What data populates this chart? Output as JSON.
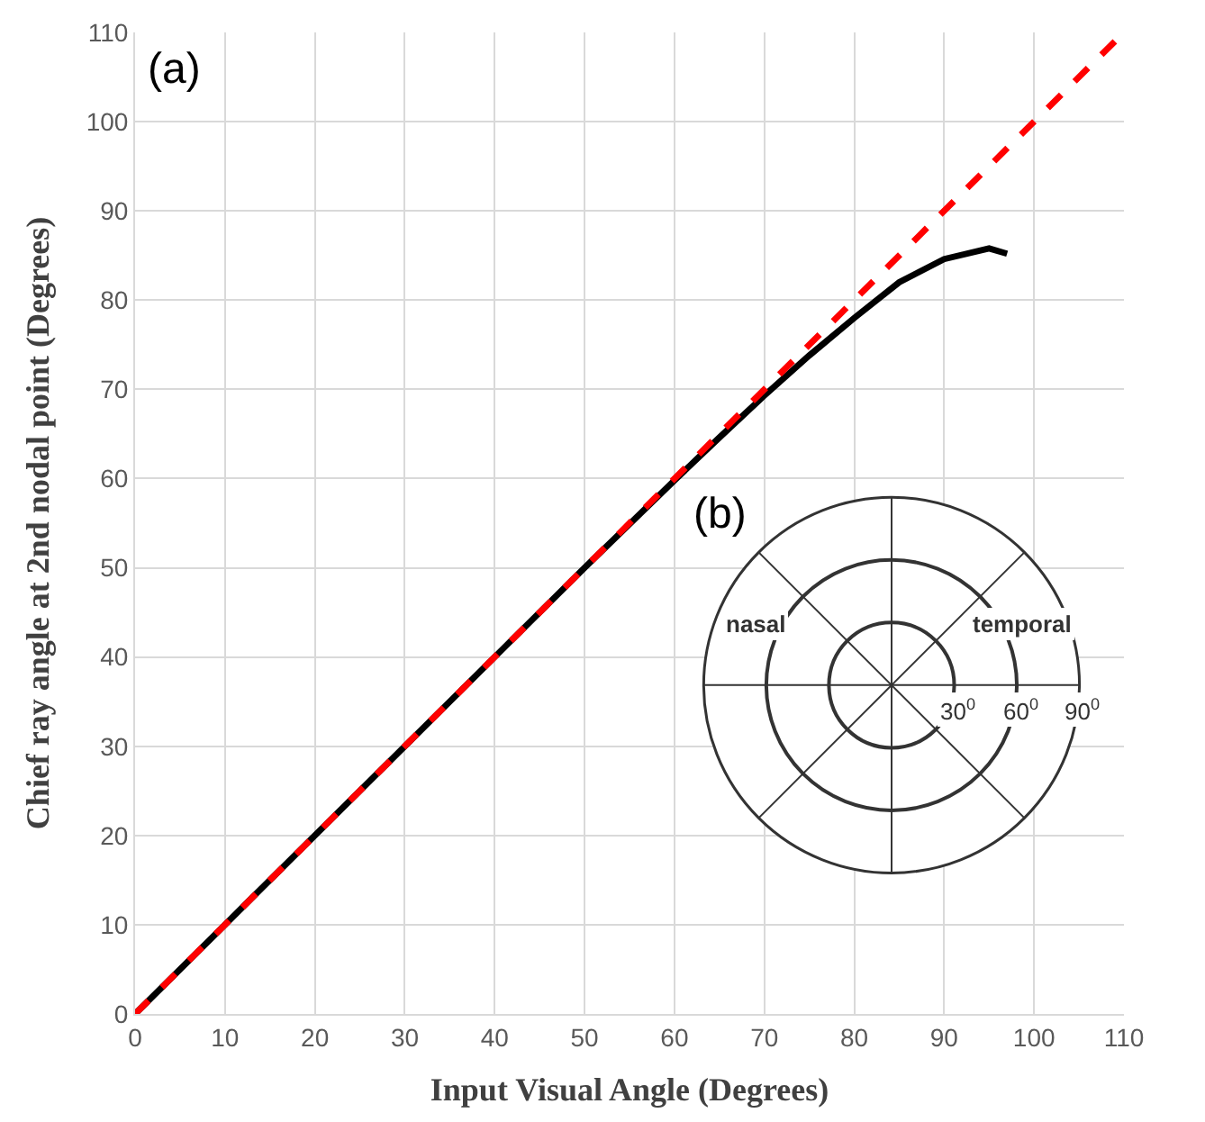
{
  "chart_data": [
    {
      "type": "line",
      "title": "(a)",
      "xlabel": "Input Visual Angle (Degrees)",
      "ylabel": "Chief ray angle at 2nd nodal point (Degrees)",
      "xlim": [
        0,
        110
      ],
      "ylim": [
        0,
        110
      ],
      "xticks": [
        0,
        10,
        20,
        30,
        40,
        50,
        60,
        70,
        80,
        90,
        100,
        110
      ],
      "yticks": [
        0,
        10,
        20,
        30,
        40,
        50,
        60,
        70,
        80,
        90,
        100,
        110
      ],
      "grid": true,
      "series": [
        {
          "color": "#000000",
          "line_style": "solid",
          "x": [
            0,
            10,
            20,
            30,
            40,
            50,
            60,
            65,
            70,
            75,
            80,
            85,
            90,
            95,
            97
          ],
          "values": [
            0,
            10,
            20,
            30,
            40,
            50,
            59.8,
            64.6,
            69.3,
            73.8,
            78,
            82,
            84.6,
            85.8,
            85.2
          ]
        },
        {
          "color": "#ff0000",
          "line_style": "dashed",
          "x": [
            0,
            110
          ],
          "values": [
            0,
            110
          ]
        }
      ]
    },
    {
      "type": "other",
      "title": "(b)",
      "annotations": [
        "nasal",
        "temporal",
        "30$^{0}$",
        "60$^{0}$",
        "90$^{0}$"
      ]
    }
  ]
}
